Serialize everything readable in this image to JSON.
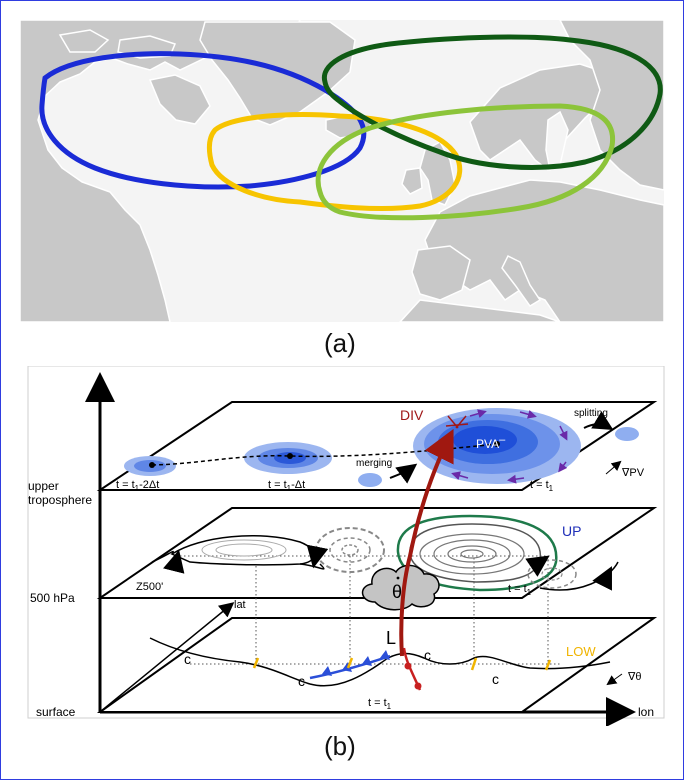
{
  "panel_a": {
    "caption": "(a)",
    "contour_colors": {
      "blue": "#1a2bd6",
      "yellow": "#f7c400",
      "dark_green": "#0f5a14",
      "light_green": "#8cc43a"
    },
    "land_color": "#c8c8c8",
    "coast_color": "#ffffff"
  },
  "panel_b": {
    "caption": "(b)",
    "levels": {
      "upper": "upper\ntroposphere",
      "upper_line1": "upper",
      "upper_line2": "troposphere",
      "mid": "500 hPa",
      "surface": "surface"
    },
    "axes": {
      "lat": "lat",
      "lon": "lon"
    },
    "upper_layer": {
      "times": [
        "t = t₁-2Δt",
        "t = t₁-Δt",
        "t = t₁"
      ],
      "time_a": "t = t",
      "time_a_sub": "1",
      "time_a_tail": "-2Δt",
      "time_b": "t = t",
      "time_b_sub": "1",
      "time_b_tail": "-Δt",
      "time_c": "t = t",
      "time_c_sub": "1",
      "div": "DIV",
      "pva": "PVA",
      "pva_sup": "–",
      "merging": "merging",
      "splitting": "splitting",
      "gradient": "∇PV"
    },
    "mid_layer": {
      "z500": "Z500'",
      "up": "UP",
      "time": "t = t",
      "time_sub": "1",
      "theta_dot": "θ"
    },
    "surface_layer": {
      "low_marker": "L",
      "low": "LOW",
      "gradient": "∇θ",
      "time": "t = t",
      "time_sub": "1"
    },
    "colors": {
      "div": "#a01818",
      "up": "#1f2fb8",
      "low": "#f0b400",
      "pv_blue": "#2b6ae8",
      "arrow_red": "#a01810",
      "green": "#1e7a4a",
      "purple": "#6a2aa8"
    }
  }
}
